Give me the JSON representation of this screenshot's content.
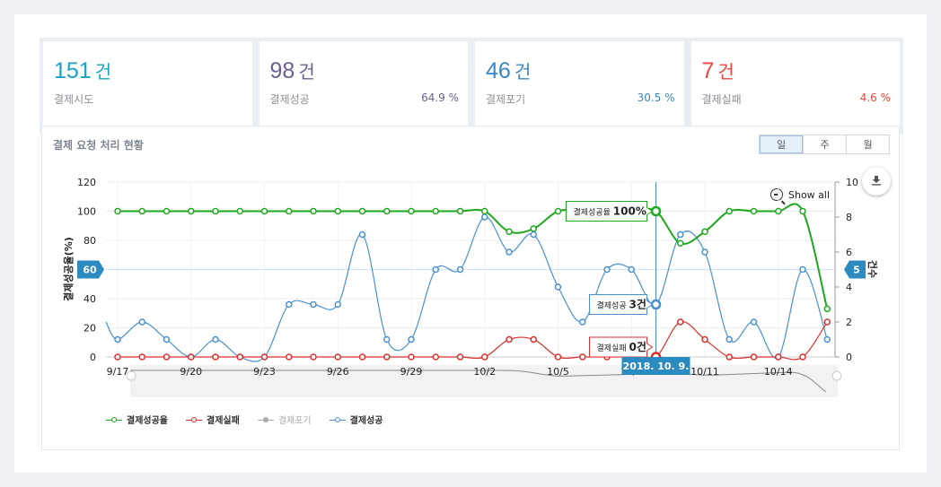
{
  "stats": [
    {
      "value": "151",
      "unit": "건",
      "label": "결제시도",
      "percent": "",
      "color": "#1aa2c4"
    },
    {
      "value": "98",
      "unit": "건",
      "label": "결제성공",
      "percent": "64.9 %",
      "color": "#6b5e91"
    },
    {
      "value": "46",
      "unit": "건",
      "label": "결제포기",
      "percent": "30.5 %",
      "color": "#3b86c6"
    },
    {
      "value": "7",
      "unit": "건",
      "label": "결제실패",
      "percent": "4.6 %",
      "color": "#e8483b"
    }
  ],
  "panel": {
    "title": "결제 요청 처리 현황",
    "period_tabs": [
      {
        "label": "일",
        "active": true
      },
      {
        "label": "주",
        "active": false
      },
      {
        "label": "월",
        "active": false
      }
    ],
    "show_all": "Show all",
    "download_icon": "download-icon"
  },
  "chart_data": {
    "type": "line",
    "title": "결제 요청 처리 현황",
    "xlabel": "",
    "ylabel": "결제성공율(%)",
    "y2label": "건수",
    "ylim": [
      0,
      120
    ],
    "y2lim": [
      0,
      10
    ],
    "yticks": [
      "0",
      "20",
      "40",
      "60",
      "80",
      "100",
      "120"
    ],
    "y2ticks": [
      "0",
      "2",
      "4",
      "6",
      "8",
      "10"
    ],
    "x": [
      "9/17",
      "9/18",
      "9/19",
      "9/20",
      "9/21",
      "9/22",
      "9/23",
      "9/24",
      "9/25",
      "9/26",
      "9/27",
      "9/28",
      "9/29",
      "9/30",
      "10/1",
      "10/2",
      "10/3",
      "10/4",
      "10/5",
      "10/6",
      "10/7",
      "10/8",
      "10/9",
      "10/10",
      "10/11",
      "10/12",
      "10/13",
      "10/14",
      "10/15",
      "10/16"
    ],
    "xtick_labels": [
      "9/17",
      "9/20",
      "9/23",
      "9/26",
      "9/29",
      "10/2",
      "10/5",
      "10/8",
      "10/11",
      "10/14"
    ],
    "series": [
      {
        "name": "결제성공율",
        "axis": "left",
        "color": "#1ea81e",
        "values": [
          100,
          100,
          100,
          100,
          100,
          100,
          100,
          100,
          100,
          100,
          100,
          100,
          100,
          100,
          100,
          100,
          86,
          88,
          100,
          100,
          100,
          100,
          100,
          78,
          86,
          100,
          100,
          100,
          100,
          33
        ]
      },
      {
        "name": "결제실패",
        "axis": "right",
        "color": "#d9302c",
        "values": [
          0,
          0,
          0,
          0,
          0,
          0,
          0,
          0,
          0,
          0,
          0,
          0,
          0,
          0,
          0,
          0,
          1,
          1,
          0,
          0,
          0,
          0,
          0,
          2,
          1,
          0,
          0,
          0,
          0,
          2
        ]
      },
      {
        "name": "결제포기",
        "axis": "right",
        "color": "#aaaaaa",
        "hidden": true,
        "values": []
      },
      {
        "name": "결제성공",
        "axis": "right",
        "color": "#4a90d0",
        "values": [
          1,
          2,
          1,
          0,
          1,
          0,
          0,
          3,
          3,
          3,
          7,
          1,
          1,
          5,
          5,
          8,
          6,
          7,
          4,
          2,
          5,
          5,
          3,
          7,
          6,
          1,
          2,
          0,
          5,
          1
        ]
      }
    ],
    "crosshair": {
      "x_label": "2018. 10. 9.",
      "y_left_label": "60",
      "y_right_label": "5",
      "tooltips": [
        {
          "series": "결제성공율",
          "text": "결제성공율",
          "value": "100%"
        },
        {
          "series": "결제성공",
          "text": "결제성공",
          "value": "3건"
        },
        {
          "series": "결제실패",
          "text": "결제실패",
          "value": "0건"
        }
      ]
    },
    "legend_position": "bottom-left",
    "grid": true
  },
  "legend": [
    {
      "label": "결제성공율",
      "color": "#1ea81e",
      "enabled": true
    },
    {
      "label": "결제실패",
      "color": "#d9302c",
      "enabled": true
    },
    {
      "label": "결제포기",
      "color": "#aaaaaa",
      "enabled": false
    },
    {
      "label": "결제성공",
      "color": "#4a90d0",
      "enabled": true
    }
  ]
}
